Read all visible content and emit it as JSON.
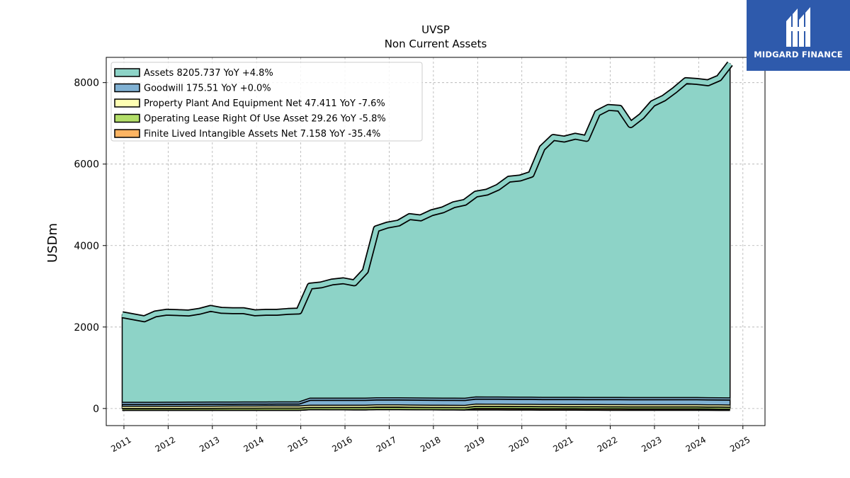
{
  "brand": {
    "name": "MIDGARD FINANCE",
    "color": "#2e5aac",
    "icon": "midgard-logo-icon"
  },
  "chart_data": {
    "type": "area",
    "title": "UVSP",
    "subtitle": "Non Current  Assets",
    "ylabel": "USDm",
    "xlabel": "",
    "xlim": [
      2010.6,
      2025.5
    ],
    "ylim": [
      -420,
      8620
    ],
    "yticks": [
      0,
      2000,
      4000,
      6000,
      8000
    ],
    "xticks": [
      "2011",
      "2012",
      "2013",
      "2014",
      "2015",
      "2016",
      "2017",
      "2018",
      "2019",
      "2020",
      "2021",
      "2022",
      "2023",
      "2024",
      "2025"
    ],
    "grid": true,
    "legend_position": "top-left",
    "x": [
      2010.96,
      2011.21,
      2011.46,
      2011.71,
      2011.96,
      2012.21,
      2012.46,
      2012.71,
      2012.96,
      2013.21,
      2013.46,
      2013.71,
      2013.96,
      2014.21,
      2014.46,
      2014.71,
      2014.96,
      2015.21,
      2015.46,
      2015.71,
      2015.96,
      2016.21,
      2016.46,
      2016.71,
      2016.96,
      2017.21,
      2017.46,
      2017.71,
      2017.96,
      2018.21,
      2018.46,
      2018.71,
      2018.96,
      2019.21,
      2019.46,
      2019.71,
      2019.96,
      2020.21,
      2020.46,
      2020.71,
      2020.96,
      2021.21,
      2021.46,
      2021.71,
      2021.96,
      2022.21,
      2022.46,
      2022.71,
      2022.96,
      2023.21,
      2023.46,
      2023.71,
      2023.96,
      2024.21,
      2024.46,
      2024.71
    ],
    "series": [
      {
        "name": "Assets",
        "legend": "Assets  8205.737 YoY +4.8%",
        "color": "#8dd3c7",
        "values": [
          2150,
          2100,
          2050,
          2170,
          2210,
          2200,
          2190,
          2230,
          2300,
          2250,
          2240,
          2240,
          2190,
          2200,
          2200,
          2220,
          2230,
          2750,
          2780,
          2850,
          2880,
          2830,
          3120,
          4150,
          4240,
          4290,
          4450,
          4420,
          4550,
          4620,
          4750,
          4810,
          4980,
          5030,
          5150,
          5350,
          5380,
          5470,
          6120,
          6380,
          6340,
          6410,
          6360,
          6980,
          7120,
          7100,
          6700,
          6910,
          7220,
          7350,
          7550,
          7780,
          7760,
          7730,
          7850,
          8205.737
        ]
      },
      {
        "name": "Goodwill",
        "legend": "Goodwill  175.51 YoY +0.0%",
        "color": "#80b1d3",
        "values": [
          100,
          100,
          100,
          100,
          100,
          100,
          100,
          100,
          100,
          100,
          100,
          100,
          100,
          100,
          100,
          100,
          100,
          175,
          175,
          175,
          175,
          175,
          175,
          175.51,
          175.51,
          175.51,
          175.51,
          175.51,
          175.51,
          175.51,
          175.51,
          175.51,
          175.51,
          175.51,
          175.51,
          175.51,
          175.51,
          175.51,
          175.51,
          175.51,
          175.51,
          175.51,
          175.51,
          175.51,
          175.51,
          175.51,
          175.51,
          175.51,
          175.51,
          175.51,
          175.51,
          175.51,
          175.51,
          175.51,
          175.51,
          175.51
        ]
      },
      {
        "name": "Property Plant And Equipment Net",
        "legend": "Property Plant And Equipment Net  47.411 YoY -7.6%",
        "color": "#ffffb3",
        "values": [
          42,
          42,
          42,
          42,
          44,
          44,
          45,
          46,
          47,
          48,
          49,
          50,
          50,
          51,
          52,
          52,
          53,
          54,
          55,
          56,
          57,
          58,
          59,
          60,
          61,
          61,
          60,
          59,
          58,
          57,
          56,
          55,
          54,
          54,
          53,
          53,
          52,
          52,
          51,
          51,
          51,
          51,
          51,
          51,
          51,
          51,
          51,
          51,
          51,
          51,
          51,
          51,
          51,
          50,
          49,
          47.411
        ]
      },
      {
        "name": "Operating Lease Right Of Use Asset",
        "legend": "Operating Lease Right Of Use Asset  29.26 YoY -5.8%",
        "color": "#b3de69",
        "values": [
          0,
          0,
          0,
          0,
          0,
          0,
          0,
          0,
          0,
          0,
          0,
          0,
          0,
          0,
          0,
          0,
          0,
          0,
          0,
          0,
          0,
          0,
          0,
          0,
          0,
          0,
          0,
          0,
          0,
          0,
          0,
          0,
          35,
          35,
          35,
          34,
          34,
          34,
          33,
          33,
          33,
          33,
          32,
          32,
          32,
          32,
          31,
          31,
          31,
          31,
          31,
          31,
          31,
          30,
          30,
          29.26
        ]
      },
      {
        "name": "Finite Lived Intangible Assets Net",
        "legend": "Finite Lived Intangible Assets Net  7.158 YoY -35.4%",
        "color": "#fdb462",
        "values": [
          10,
          10,
          10,
          10,
          10,
          10,
          10,
          10,
          10,
          10,
          10,
          10,
          10,
          10,
          10,
          10,
          10,
          25,
          25,
          24,
          23,
          22,
          21,
          28,
          27,
          26,
          25,
          24,
          23,
          22,
          21,
          20,
          19,
          18,
          18,
          17,
          16,
          16,
          15,
          15,
          14,
          14,
          13,
          13,
          12,
          12,
          11,
          11,
          11,
          11,
          11,
          11,
          11,
          10,
          8,
          7.158
        ]
      }
    ]
  }
}
